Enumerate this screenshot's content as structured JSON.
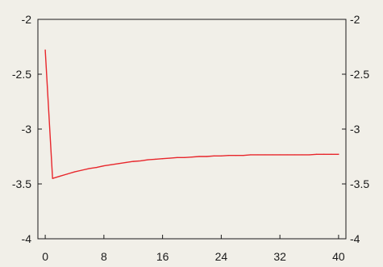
{
  "chart_data": {
    "type": "line",
    "title": "",
    "xlabel": "",
    "ylabel": "",
    "xlim": [
      -1,
      41
    ],
    "ylim": [
      -4,
      -2
    ],
    "xticks": [
      0,
      8,
      16,
      24,
      32,
      40
    ],
    "xtick_labels": [
      "0",
      "8",
      "16",
      "24",
      "32",
      "40"
    ],
    "yticks": [
      -2,
      -2.5,
      -3,
      -3.5,
      -4
    ],
    "ytick_labels_left": [
      "-2",
      "-2.5",
      "-3",
      "-3.5",
      "-4"
    ],
    "ytick_labels_right": [
      "-2",
      "-2.5",
      "-3",
      "-3.5",
      "-4"
    ],
    "grid": false,
    "series": [
      {
        "color": "#e8262b",
        "x": [
          0,
          1,
          2,
          3,
          4,
          5,
          6,
          7,
          8,
          9,
          10,
          11,
          12,
          13,
          14,
          15,
          16,
          17,
          18,
          19,
          20,
          21,
          22,
          23,
          24,
          25,
          26,
          27,
          28,
          29,
          30,
          31,
          32,
          33,
          34,
          35,
          36,
          37,
          38,
          39,
          40
        ],
        "values": [
          -2.28,
          -3.45,
          -3.43,
          -3.41,
          -3.39,
          -3.375,
          -3.36,
          -3.35,
          -3.335,
          -3.325,
          -3.315,
          -3.305,
          -3.295,
          -3.29,
          -3.28,
          -3.275,
          -3.27,
          -3.265,
          -3.26,
          -3.26,
          -3.255,
          -3.25,
          -3.25,
          -3.245,
          -3.245,
          -3.24,
          -3.24,
          -3.24,
          -3.235,
          -3.235,
          -3.235,
          -3.235,
          -3.235,
          -3.235,
          -3.235,
          -3.235,
          -3.235,
          -3.23,
          -3.23,
          -3.23,
          -3.23
        ]
      }
    ]
  }
}
